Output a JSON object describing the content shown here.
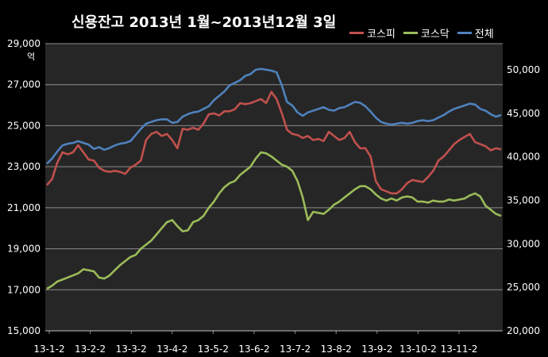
{
  "chart_data": {
    "type": "line",
    "title": "신용잔고 2013년 1월~2013년12월 3일",
    "left_axis_unit": "억",
    "left_axis": {
      "ylim": [
        15000,
        29000
      ],
      "ticks": [
        "15,000",
        "17,000",
        "19,000",
        "21,000",
        "23,000",
        "25,000",
        "27,000",
        "29,000"
      ]
    },
    "right_axis": {
      "ylim": [
        20000,
        53000
      ],
      "ticks": [
        "20,000",
        "25,000",
        "30,000",
        "35,000",
        "40,000",
        "45,000",
        "50,000"
      ]
    },
    "x_ticks": [
      "13-1-2",
      "13-2-2",
      "13-3-2",
      "13-4-2",
      "13-5-2",
      "13-6-2",
      "13-7-2",
      "13-8-2",
      "13-9-2",
      "13-10-2",
      "13-11-2"
    ],
    "grid": true,
    "legend_position": "top-right",
    "series": [
      {
        "name": "코스피",
        "color": "#c0504d",
        "axis": "left",
        "values": [
          22100,
          22400,
          23200,
          23700,
          23600,
          23700,
          24050,
          23700,
          23350,
          23300,
          22950,
          22800,
          22750,
          22800,
          22750,
          22650,
          22950,
          23100,
          23300,
          24300,
          24600,
          24700,
          24500,
          24600,
          24300,
          23900,
          24850,
          24800,
          24900,
          24800,
          25100,
          25550,
          25600,
          25500,
          25700,
          25700,
          25800,
          26100,
          26050,
          26100,
          26200,
          26300,
          26100,
          26650,
          26300,
          25600,
          24800,
          24600,
          24550,
          24400,
          24500,
          24300,
          24350,
          24250,
          24700,
          24500,
          24300,
          24400,
          24700,
          24200,
          23900,
          23900,
          23500,
          22300,
          21900,
          21800,
          21700,
          21700,
          21900,
          22200,
          22350,
          22300,
          22250,
          22500,
          22800,
          23300,
          23500,
          23800,
          24100,
          24300,
          24450,
          24600,
          24200,
          24100,
          24000,
          23800,
          23900,
          23850
        ]
      },
      {
        "name": "코스닥",
        "color": "#9bbb59",
        "axis": "left",
        "values": [
          17050,
          17200,
          17400,
          17500,
          17600,
          17700,
          17800,
          18000,
          17950,
          17900,
          17600,
          17550,
          17700,
          17950,
          18200,
          18400,
          18600,
          18700,
          19000,
          19200,
          19400,
          19700,
          20000,
          20300,
          20400,
          20100,
          19850,
          19900,
          20300,
          20400,
          20600,
          21000,
          21300,
          21700,
          22000,
          22200,
          22300,
          22600,
          22800,
          23000,
          23400,
          23700,
          23650,
          23500,
          23300,
          23100,
          23000,
          22800,
          22300,
          21500,
          20400,
          20800,
          20750,
          20700,
          20900,
          21150,
          21300,
          21500,
          21700,
          21900,
          22050,
          22050,
          21900,
          21650,
          21450,
          21350,
          21450,
          21350,
          21500,
          21550,
          21500,
          21300,
          21300,
          21250,
          21350,
          21300,
          21300,
          21400,
          21350,
          21400,
          21450,
          21600,
          21700,
          21550,
          21100,
          20900,
          20700,
          20600
        ]
      },
      {
        "name": "전체",
        "color": "#4f81bd",
        "axis": "right",
        "values": [
          39200,
          39800,
          40600,
          41300,
          41500,
          41600,
          41800,
          41600,
          41400,
          40900,
          41100,
          40800,
          41000,
          41300,
          41500,
          41600,
          41800,
          42500,
          43200,
          43800,
          44000,
          44200,
          44300,
          44300,
          43900,
          44000,
          44600,
          44900,
          45100,
          45200,
          45500,
          45800,
          46500,
          47000,
          47500,
          48200,
          48500,
          48800,
          49300,
          49500,
          50000,
          50100,
          50000,
          49900,
          49700,
          48200,
          46300,
          45900,
          45100,
          44700,
          45100,
          45300,
          45500,
          45700,
          45400,
          45300,
          45600,
          45700,
          46000,
          46300,
          46200,
          45800,
          45200,
          44500,
          44000,
          43800,
          43700,
          43800,
          43900,
          43800,
          43900,
          44100,
          44200,
          44100,
          44200,
          44500,
          44800,
          45200,
          45500,
          45700,
          45900,
          46100,
          46000,
          45500,
          45300,
          44900,
          44600,
          44800
        ]
      }
    ]
  }
}
